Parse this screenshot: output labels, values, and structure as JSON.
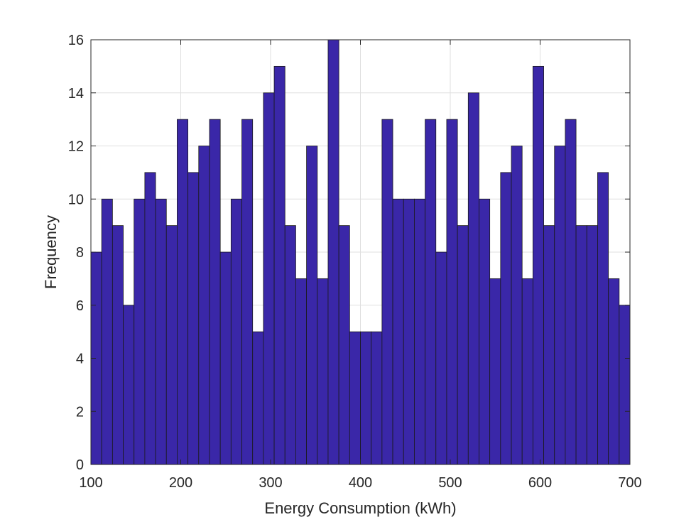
{
  "chart_data": {
    "type": "bar",
    "title": "",
    "xlabel": "Energy Consumption (kWh)",
    "ylabel": "Frequency",
    "xlim": [
      100,
      700
    ],
    "ylim": [
      0,
      16
    ],
    "xticks": [
      100,
      200,
      300,
      400,
      500,
      600,
      700
    ],
    "yticks": [
      0,
      2,
      4,
      6,
      8,
      10,
      12,
      14,
      16
    ],
    "grid": true,
    "bar_color": "#3a27a8",
    "bar_edge_color": "#1a1a1a",
    "bin_width": 12,
    "bin_edges_start": 100,
    "values": [
      8,
      10,
      9,
      6,
      10,
      11,
      10,
      9,
      13,
      11,
      12,
      13,
      8,
      10,
      13,
      5,
      14,
      15,
      9,
      7,
      12,
      7,
      16,
      9,
      5,
      5,
      5,
      13,
      10,
      10,
      10,
      13,
      8,
      13,
      9,
      14,
      10,
      7,
      11,
      12,
      7,
      15,
      9,
      12,
      13,
      9,
      9,
      11,
      7,
      6
    ]
  }
}
